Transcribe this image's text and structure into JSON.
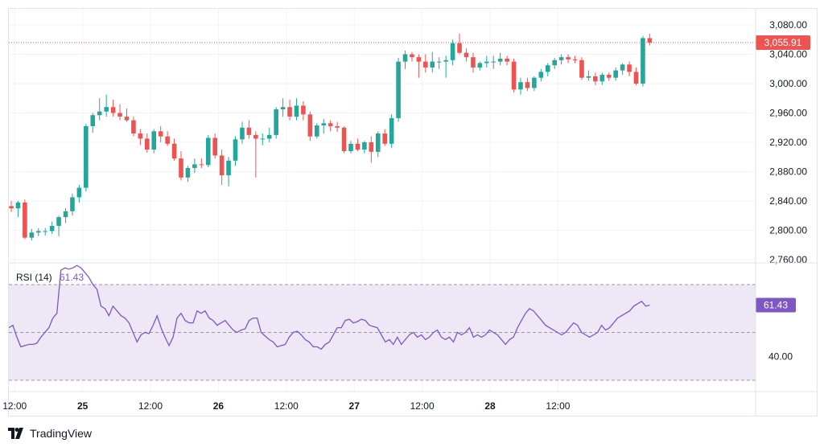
{
  "brand": {
    "name": "TradingView",
    "logo_text": "TV"
  },
  "colors": {
    "up": "#26a69a",
    "down": "#ef5350",
    "rsi_line": "#7e57c2",
    "rsi_fill": "#ede7f6",
    "grid": "#f0f3fa",
    "text": "#131722",
    "price_line": "#ef5350"
  },
  "chart_data": [
    {
      "type": "candlestick",
      "title": "",
      "y_ticks": [
        "3,080.00",
        "3,040.00",
        "3,000.00",
        "2,960.00",
        "2,920.00",
        "2,880.00",
        "2,840.00",
        "2,800.00",
        "2,760.00"
      ],
      "y_tick_values": [
        3080,
        3040,
        3000,
        2960,
        2920,
        2880,
        2840,
        2800,
        2760
      ],
      "ylim": [
        2760,
        3095
      ],
      "x_ticks": [
        {
          "label": "12:00",
          "pos": 0.5,
          "bold": false
        },
        {
          "label": "25",
          "pos": 10.5,
          "bold": true
        },
        {
          "label": "12:00",
          "pos": 20.5,
          "bold": false
        },
        {
          "label": "26",
          "pos": 30.5,
          "bold": true
        },
        {
          "label": "12:00",
          "pos": 40.5,
          "bold": false
        },
        {
          "label": "27",
          "pos": 50.5,
          "bold": true
        },
        {
          "label": "12:00",
          "pos": 60.5,
          "bold": false
        },
        {
          "label": "28",
          "pos": 70.5,
          "bold": true
        },
        {
          "label": "12:00",
          "pos": 80.5,
          "bold": false
        }
      ],
      "last_price": 3055.91,
      "last_price_label": "3,055.91",
      "candles": [
        [
          2833,
          2840,
          2825,
          2830
        ],
        [
          2830,
          2840,
          2818,
          2838
        ],
        [
          2838,
          2842,
          2788,
          2790
        ],
        [
          2790,
          2802,
          2786,
          2797
        ],
        [
          2797,
          2803,
          2792,
          2799
        ],
        [
          2799,
          2803,
          2793,
          2799
        ],
        [
          2799,
          2812,
          2795,
          2806
        ],
        [
          2806,
          2820,
          2792,
          2818
        ],
        [
          2818,
          2830,
          2810,
          2826
        ],
        [
          2826,
          2850,
          2820,
          2845
        ],
        [
          2845,
          2862,
          2838,
          2858
        ],
        [
          2858,
          2945,
          2853,
          2942
        ],
        [
          2942,
          2960,
          2933,
          2957
        ],
        [
          2957,
          2980,
          2950,
          2962
        ],
        [
          2962,
          2985,
          2955,
          2968
        ],
        [
          2968,
          2978,
          2955,
          2960
        ],
        [
          2960,
          2972,
          2950,
          2955
        ],
        [
          2955,
          2966,
          2948,
          2950
        ],
        [
          2950,
          2955,
          2928,
          2932
        ],
        [
          2932,
          2938,
          2916,
          2925
        ],
        [
          2925,
          2932,
          2906,
          2910
        ],
        [
          2910,
          2938,
          2905,
          2935
        ],
        [
          2935,
          2942,
          2920,
          2928
        ],
        [
          2928,
          2935,
          2915,
          2918
        ],
        [
          2918,
          2925,
          2895,
          2898
        ],
        [
          2898,
          2908,
          2868,
          2872
        ],
        [
          2872,
          2888,
          2866,
          2885
        ],
        [
          2885,
          2898,
          2878,
          2890
        ],
        [
          2890,
          2898,
          2885,
          2889
        ],
        [
          2889,
          2930,
          2886,
          2926
        ],
        [
          2926,
          2932,
          2898,
          2902
        ],
        [
          2902,
          2910,
          2862,
          2875
        ],
        [
          2875,
          2900,
          2860,
          2895
        ],
        [
          2895,
          2928,
          2888,
          2924
        ],
        [
          2924,
          2948,
          2918,
          2940
        ],
        [
          2940,
          2950,
          2925,
          2930
        ],
        [
          2930,
          2935,
          2872,
          2925
        ],
        [
          2925,
          2932,
          2916,
          2925
        ],
        [
          2925,
          2940,
          2920,
          2930
        ],
        [
          2930,
          2968,
          2925,
          2965
        ],
        [
          2965,
          2980,
          2955,
          2968
        ],
        [
          2968,
          2978,
          2950,
          2955
        ],
        [
          2955,
          2980,
          2950,
          2970
        ],
        [
          2970,
          2976,
          2950,
          2958
        ],
        [
          2958,
          2962,
          2922,
          2928
        ],
        [
          2928,
          2946,
          2925,
          2943
        ],
        [
          2943,
          2952,
          2932,
          2946
        ],
        [
          2946,
          2950,
          2935,
          2942
        ],
        [
          2942,
          2948,
          2934,
          2940
        ],
        [
          2940,
          2942,
          2905,
          2908
        ],
        [
          2908,
          2922,
          2905,
          2918
        ],
        [
          2918,
          2925,
          2908,
          2910
        ],
        [
          2910,
          2922,
          2905,
          2920
        ],
        [
          2920,
          2928,
          2892,
          2907
        ],
        [
          2907,
          2935,
          2900,
          2932
        ],
        [
          2932,
          2938,
          2915,
          2918
        ],
        [
          2918,
          2958,
          2912,
          2953
        ],
        [
          2953,
          3035,
          2948,
          3030
        ],
        [
          3030,
          3045,
          3020,
          3040
        ],
        [
          3040,
          3043,
          3030,
          3036
        ],
        [
          3036,
          3040,
          3008,
          3030
        ],
        [
          3030,
          3040,
          3015,
          3022
        ],
        [
          3022,
          3043,
          3015,
          3030
        ],
        [
          3030,
          3036,
          3020,
          3030
        ],
        [
          3030,
          3038,
          3008,
          3032
        ],
        [
          3032,
          3060,
          3025,
          3055
        ],
        [
          3055,
          3068,
          3040,
          3042
        ],
        [
          3042,
          3048,
          3030,
          3036
        ],
        [
          3036,
          3042,
          3015,
          3022
        ],
        [
          3022,
          3030,
          3018,
          3028
        ],
        [
          3028,
          3038,
          3022,
          3030
        ],
        [
          3030,
          3038,
          3020,
          3030
        ],
        [
          3030,
          3042,
          3025,
          3034
        ],
        [
          3034,
          3038,
          3025,
          3030
        ],
        [
          3030,
          3034,
          2988,
          2992
        ],
        [
          2992,
          3008,
          2985,
          3002
        ],
        [
          3002,
          3008,
          2990,
          2994
        ],
        [
          2994,
          3010,
          2990,
          3008
        ],
        [
          3008,
          3020,
          3003,
          3016
        ],
        [
          3016,
          3028,
          3010,
          3025
        ],
        [
          3025,
          3035,
          3020,
          3032
        ],
        [
          3032,
          3040,
          3026,
          3036
        ],
        [
          3036,
          3040,
          3028,
          3033
        ],
        [
          3033,
          3038,
          3028,
          3032
        ],
        [
          3032,
          3036,
          3005,
          3008
        ],
        [
          3008,
          3018,
          3004,
          3010
        ],
        [
          3010,
          3015,
          2998,
          3003
        ],
        [
          3003,
          3015,
          2998,
          3012
        ],
        [
          3012,
          3015,
          3004,
          3008
        ],
        [
          3008,
          3022,
          3004,
          3018
        ],
        [
          3018,
          3028,
          3012,
          3026
        ],
        [
          3026,
          3030,
          3010,
          3016
        ],
        [
          3016,
          3022,
          2998,
          3000
        ],
        [
          3000,
          3065,
          2996,
          3062
        ],
        [
          3062,
          3068,
          3052,
          3056
        ]
      ]
    },
    {
      "type": "line",
      "title": "RSI (14)",
      "current_value": 61.43,
      "current_label": "61.43",
      "upper_band": 70,
      "middle_band": 50,
      "lower_band": 30,
      "ylim": [
        24,
        80
      ],
      "y_ticks": [
        "40.00"
      ],
      "y_tick_values": [
        40
      ],
      "values": [
        52,
        53,
        48,
        44,
        44.5,
        45,
        45,
        45.5,
        48,
        50,
        52,
        56,
        58,
        76,
        77,
        76.5,
        77,
        78,
        77,
        75,
        73,
        70,
        68,
        61,
        60,
        57,
        61,
        59,
        57,
        56,
        54,
        50,
        46,
        49,
        50,
        49.5,
        53,
        57,
        52,
        48,
        44.5,
        48,
        56,
        58,
        55,
        54,
        54,
        59,
        58,
        59,
        56,
        55,
        53,
        54,
        55,
        53,
        51,
        50,
        51,
        51.5,
        55,
        56,
        56,
        50,
        48.5,
        47,
        46,
        44,
        44.5,
        45,
        48,
        50,
        50.5,
        49,
        47,
        46,
        44,
        44,
        43,
        45,
        46,
        49,
        52,
        52,
        55,
        55.5,
        54,
        54.5,
        55.5,
        55,
        53,
        52.5,
        52,
        49,
        46,
        47,
        45,
        48,
        45,
        47,
        49,
        50,
        48,
        49,
        47,
        48,
        50,
        51,
        48,
        47,
        48,
        46,
        50,
        49,
        50,
        52,
        48,
        49,
        48,
        49,
        51,
        50,
        49,
        47,
        45,
        47,
        48,
        52,
        55,
        58,
        60,
        59,
        57,
        55,
        53,
        52,
        51,
        50,
        49,
        50,
        52,
        54,
        53,
        50,
        49,
        48,
        49,
        50,
        53,
        51,
        52,
        54,
        56,
        57,
        58,
        59,
        61,
        62,
        63,
        61,
        61.43
      ]
    }
  ]
}
